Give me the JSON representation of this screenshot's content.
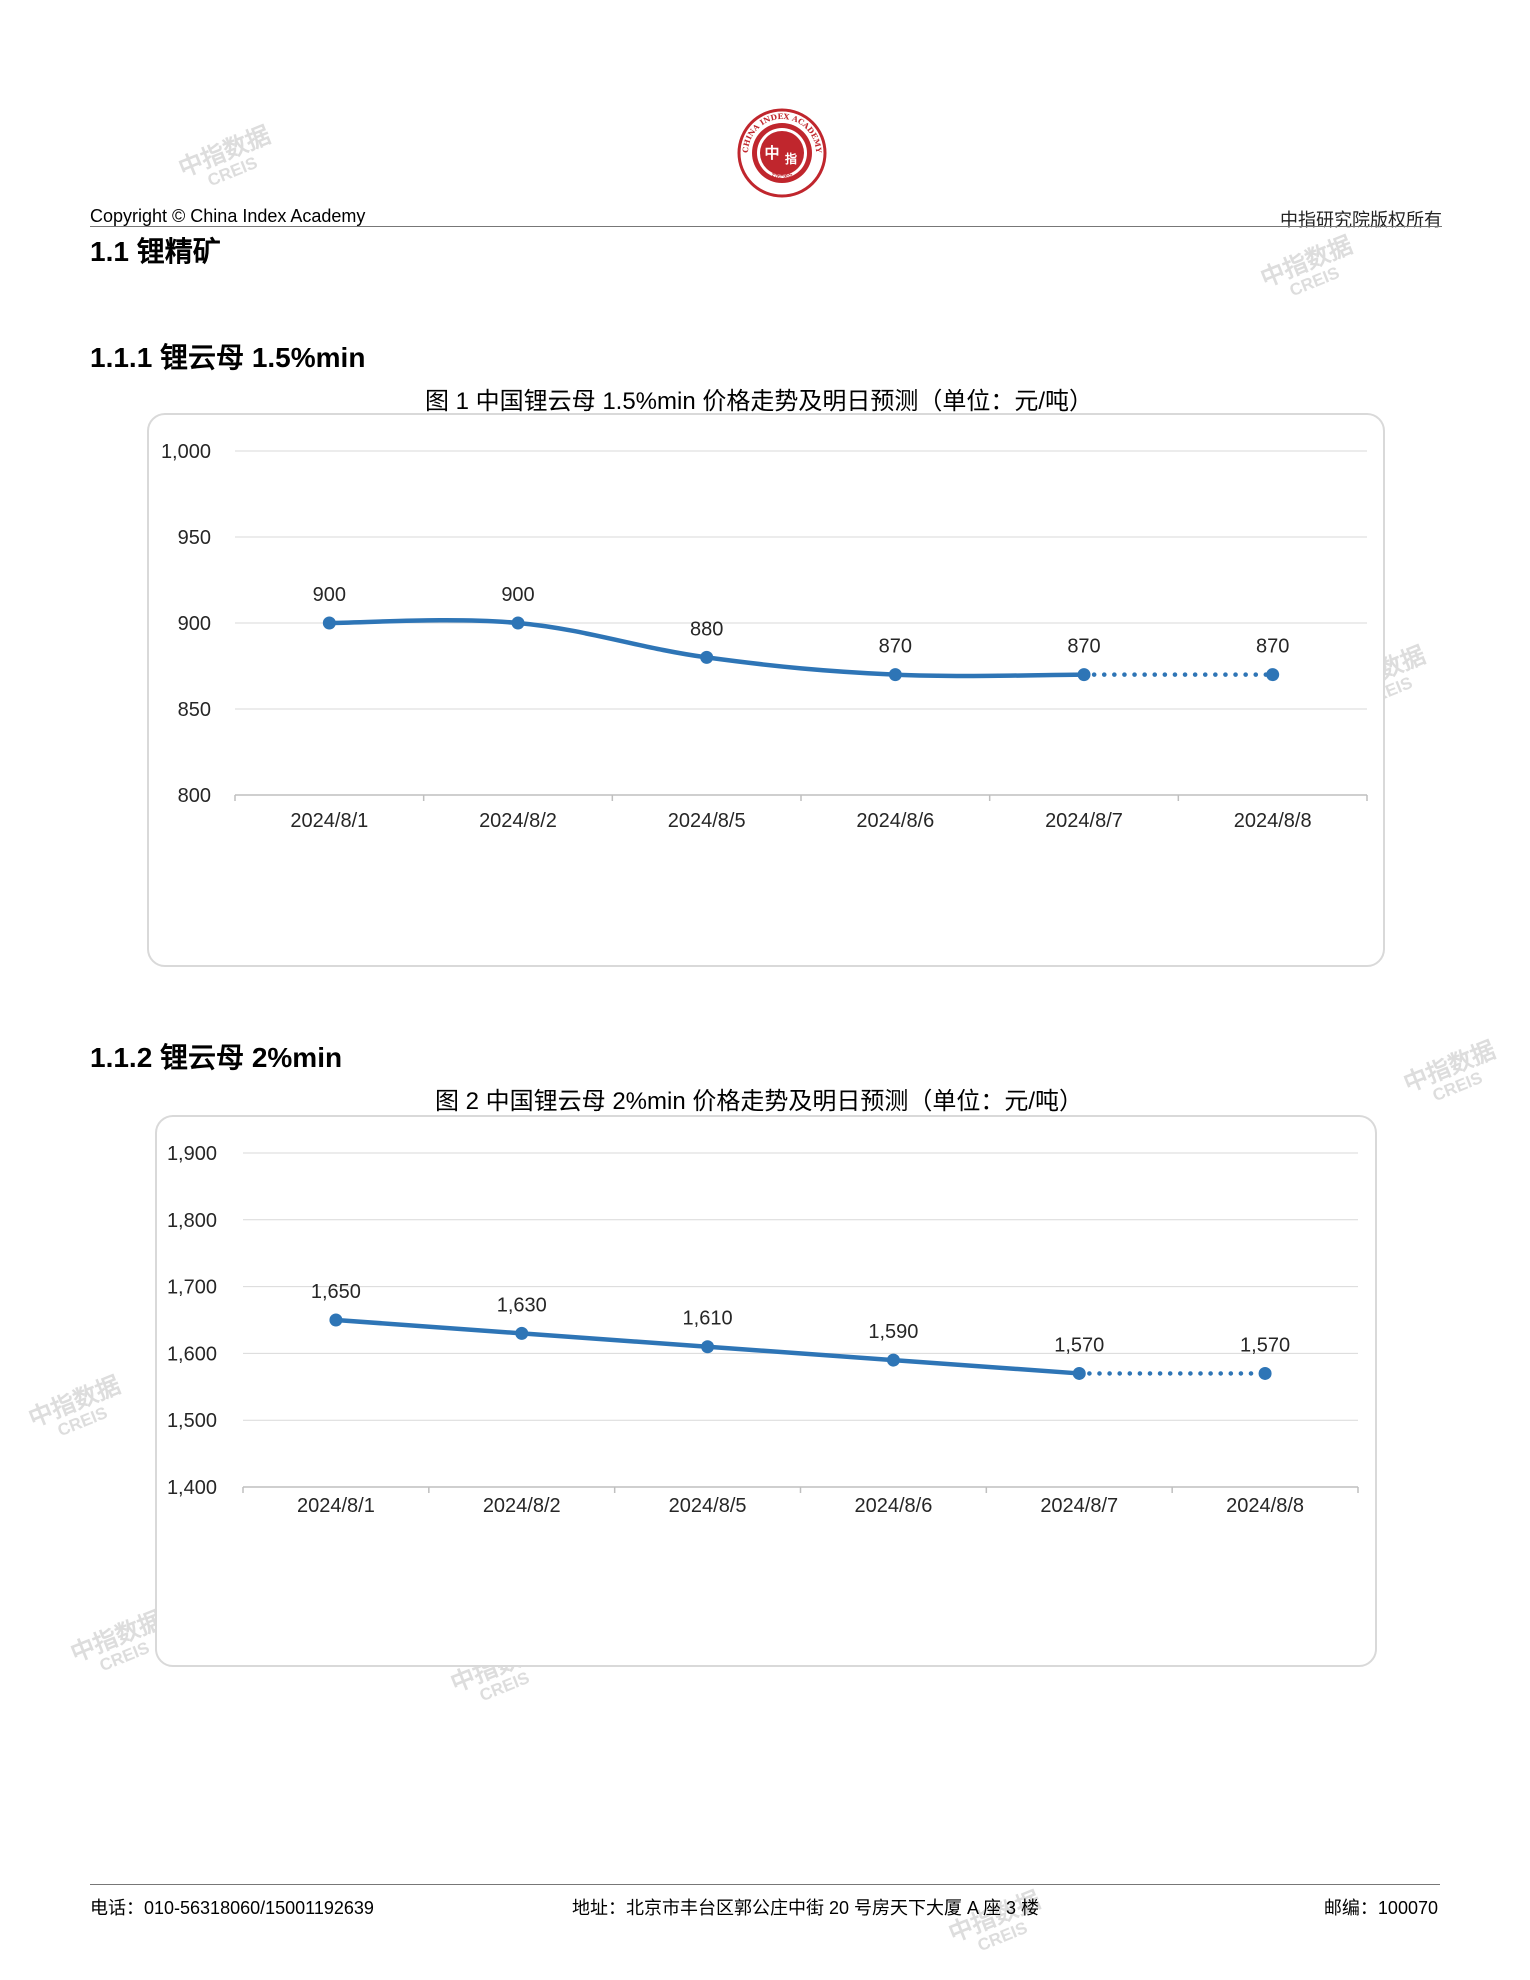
{
  "header": {
    "copyright": "Copyright © China Index Academy",
    "rights": "中指研究院版权所有",
    "logo_text_center": "中",
    "logo_text_right": "指",
    "logo_ring_top": "CHINA INDEX ACADEMY",
    "logo_ring_bottom": "研究院"
  },
  "section_title": "1.1 锂精矿",
  "watermark": {
    "line1": "中指数据",
    "line2": "CREIS"
  },
  "charts": [
    {
      "subsection": "1.1.1 锂云母 1.5%min",
      "title": "图 1 中国锂云母 1.5%min 价格走势及明日预测（单位：元/吨）",
      "chart_data": {
        "type": "line",
        "categories": [
          "2024/8/1",
          "2024/8/2",
          "2024/8/5",
          "2024/8/6",
          "2024/8/7",
          "2024/8/8"
        ],
        "values": [
          900,
          900,
          880,
          870,
          870,
          870
        ],
        "data_labels": [
          "900",
          "900",
          "880",
          "870",
          "870",
          "870"
        ],
        "forecast_from_index": 4,
        "ylim": [
          800,
          1000
        ],
        "yticks": [
          800,
          850,
          900,
          950,
          1000
        ],
        "ytick_labels": [
          "800",
          "850",
          "900",
          "950",
          "1,000"
        ],
        "line_color": "#2E75B6",
        "grid": true,
        "smooth": true,
        "xlabel": "",
        "ylabel": ""
      }
    },
    {
      "subsection": "1.1.2 锂云母 2%min",
      "title": "图 2 中国锂云母 2%min 价格走势及明日预测（单位：元/吨）",
      "chart_data": {
        "type": "line",
        "categories": [
          "2024/8/1",
          "2024/8/2",
          "2024/8/5",
          "2024/8/6",
          "2024/8/7",
          "2024/8/8"
        ],
        "values": [
          1650,
          1630,
          1610,
          1590,
          1570,
          1570
        ],
        "data_labels": [
          "1,650",
          "1,630",
          "1,610",
          "1,590",
          "1,570",
          "1,570"
        ],
        "forecast_from_index": 4,
        "ylim": [
          1400,
          1900
        ],
        "yticks": [
          1400,
          1500,
          1600,
          1700,
          1800,
          1900
        ],
        "ytick_labels": [
          "1,400",
          "1,500",
          "1,600",
          "1,700",
          "1,800",
          "1,900"
        ],
        "line_color": "#2E75B6",
        "grid": true,
        "smooth": false,
        "xlabel": "",
        "ylabel": ""
      }
    }
  ],
  "footer": {
    "phone": "电话：010-56318060/15001192639",
    "address": "地址：北京市丰台区郭公庄中街 20 号房天下大厦 A 座 3 楼",
    "postcode": "邮编：100070"
  }
}
